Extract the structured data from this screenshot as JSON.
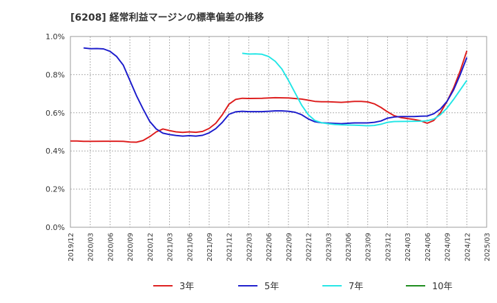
{
  "chart_data": {
    "type": "line",
    "title": "[6208]  経常利益マージンの標準偏差の推移",
    "xlabel": "",
    "ylabel": "",
    "ylim": [
      0,
      1.0
    ],
    "y_ticks": [
      "0.0%",
      "0.2%",
      "0.4%",
      "0.6%",
      "0.8%",
      "1.0%"
    ],
    "x_ticks": [
      "2019/12",
      "2020/03",
      "2020/06",
      "2020/09",
      "2020/12",
      "2021/03",
      "2021/06",
      "2021/09",
      "2021/12",
      "2022/03",
      "2022/06",
      "2022/09",
      "2022/12",
      "2023/03",
      "2023/06",
      "2023/09",
      "2023/12",
      "2024/03",
      "2024/06",
      "2024/09",
      "2024/12",
      "2025/03"
    ],
    "grid": true,
    "legend_position": "bottom",
    "series": [
      {
        "name": "3年",
        "color": "#dd1c1c",
        "points": [
          [
            "2019/12",
            0.452
          ],
          [
            "2020/01",
            0.452
          ],
          [
            "2020/02",
            0.45
          ],
          [
            "2020/03",
            0.45
          ],
          [
            "2020/05",
            0.451
          ],
          [
            "2020/07",
            0.451
          ],
          [
            "2020/08",
            0.45
          ],
          [
            "2020/09",
            0.447
          ],
          [
            "2020/10",
            0.446
          ],
          [
            "2020/11",
            0.455
          ],
          [
            "2020/12",
            0.475
          ],
          [
            "2021/01",
            0.5
          ],
          [
            "2021/02",
            0.515
          ],
          [
            "2021/03",
            0.507
          ],
          [
            "2021/04",
            0.5
          ],
          [
            "2021/05",
            0.497
          ],
          [
            "2021/06",
            0.5
          ],
          [
            "2021/07",
            0.498
          ],
          [
            "2021/08",
            0.502
          ],
          [
            "2021/09",
            0.518
          ],
          [
            "2021/10",
            0.545
          ],
          [
            "2021/11",
            0.59
          ],
          [
            "2021/12",
            0.645
          ],
          [
            "2022/01",
            0.67
          ],
          [
            "2022/02",
            0.676
          ],
          [
            "2022/03",
            0.675
          ],
          [
            "2022/05",
            0.676
          ],
          [
            "2022/07",
            0.679
          ],
          [
            "2022/09",
            0.678
          ],
          [
            "2022/11",
            0.672
          ],
          [
            "2022/12",
            0.666
          ],
          [
            "2023/01",
            0.66
          ],
          [
            "2023/02",
            0.658
          ],
          [
            "2023/03",
            0.658
          ],
          [
            "2023/05",
            0.655
          ],
          [
            "2023/06",
            0.657
          ],
          [
            "2023/07",
            0.66
          ],
          [
            "2023/08",
            0.66
          ],
          [
            "2023/09",
            0.657
          ],
          [
            "2023/10",
            0.647
          ],
          [
            "2023/11",
            0.628
          ],
          [
            "2023/12",
            0.605
          ],
          [
            "2024/01",
            0.585
          ],
          [
            "2024/02",
            0.575
          ],
          [
            "2024/03",
            0.57
          ],
          [
            "2024/04",
            0.565
          ],
          [
            "2024/05",
            0.558
          ],
          [
            "2024/06",
            0.545
          ],
          [
            "2024/07",
            0.56
          ],
          [
            "2024/08",
            0.6
          ],
          [
            "2024/09",
            0.66
          ],
          [
            "2024/10",
            0.73
          ],
          [
            "2024/11",
            0.82
          ],
          [
            "2024/12",
            0.925
          ]
        ]
      },
      {
        "name": "5年",
        "color": "#1c1ccc",
        "points": [
          [
            "2020/02",
            0.94
          ],
          [
            "2020/03",
            0.936
          ],
          [
            "2020/04",
            0.937
          ],
          [
            "2020/05",
            0.935
          ],
          [
            "2020/06",
            0.922
          ],
          [
            "2020/07",
            0.895
          ],
          [
            "2020/08",
            0.85
          ],
          [
            "2020/09",
            0.77
          ],
          [
            "2020/10",
            0.69
          ],
          [
            "2020/11",
            0.62
          ],
          [
            "2020/12",
            0.555
          ],
          [
            "2021/01",
            0.515
          ],
          [
            "2021/02",
            0.493
          ],
          [
            "2021/03",
            0.486
          ],
          [
            "2021/04",
            0.481
          ],
          [
            "2021/05",
            0.478
          ],
          [
            "2021/06",
            0.48
          ],
          [
            "2021/07",
            0.478
          ],
          [
            "2021/08",
            0.482
          ],
          [
            "2021/09",
            0.495
          ],
          [
            "2021/10",
            0.517
          ],
          [
            "2021/11",
            0.55
          ],
          [
            "2021/12",
            0.592
          ],
          [
            "2022/01",
            0.605
          ],
          [
            "2022/02",
            0.608
          ],
          [
            "2022/03",
            0.606
          ],
          [
            "2022/05",
            0.606
          ],
          [
            "2022/06",
            0.608
          ],
          [
            "2022/07",
            0.61
          ],
          [
            "2022/08",
            0.61
          ],
          [
            "2022/09",
            0.608
          ],
          [
            "2022/10",
            0.603
          ],
          [
            "2022/11",
            0.59
          ],
          [
            "2022/12",
            0.568
          ],
          [
            "2023/01",
            0.553
          ],
          [
            "2023/02",
            0.548
          ],
          [
            "2023/03",
            0.546
          ],
          [
            "2023/05",
            0.543
          ],
          [
            "2023/06",
            0.545
          ],
          [
            "2023/07",
            0.547
          ],
          [
            "2023/09",
            0.547
          ],
          [
            "2023/10",
            0.55
          ],
          [
            "2023/11",
            0.557
          ],
          [
            "2023/12",
            0.572
          ],
          [
            "2024/01",
            0.578
          ],
          [
            "2024/02",
            0.58
          ],
          [
            "2024/04",
            0.58
          ],
          [
            "2024/05",
            0.582
          ],
          [
            "2024/06",
            0.583
          ],
          [
            "2024/07",
            0.595
          ],
          [
            "2024/08",
            0.62
          ],
          [
            "2024/09",
            0.66
          ],
          [
            "2024/10",
            0.72
          ],
          [
            "2024/11",
            0.8
          ],
          [
            "2024/12",
            0.89
          ]
        ]
      },
      {
        "name": "7年",
        "color": "#22e6e6",
        "points": [
          [
            "2022/02",
            0.912
          ],
          [
            "2022/03",
            0.908
          ],
          [
            "2022/04",
            0.909
          ],
          [
            "2022/05",
            0.907
          ],
          [
            "2022/06",
            0.895
          ],
          [
            "2022/07",
            0.87
          ],
          [
            "2022/08",
            0.83
          ],
          [
            "2022/09",
            0.77
          ],
          [
            "2022/10",
            0.705
          ],
          [
            "2022/11",
            0.64
          ],
          [
            "2022/12",
            0.59
          ],
          [
            "2023/01",
            0.56
          ],
          [
            "2023/02",
            0.548
          ],
          [
            "2023/03",
            0.543
          ],
          [
            "2023/04",
            0.539
          ],
          [
            "2023/05",
            0.537
          ],
          [
            "2023/07",
            0.535
          ],
          [
            "2023/08",
            0.534
          ],
          [
            "2023/09",
            0.532
          ],
          [
            "2023/10",
            0.534
          ],
          [
            "2023/11",
            0.54
          ],
          [
            "2023/12",
            0.55
          ],
          [
            "2024/01",
            0.554
          ],
          [
            "2024/03",
            0.555
          ],
          [
            "2024/05",
            0.556
          ],
          [
            "2024/06",
            0.558
          ],
          [
            "2024/07",
            0.567
          ],
          [
            "2024/08",
            0.59
          ],
          [
            "2024/09",
            0.625
          ],
          [
            "2024/10",
            0.67
          ],
          [
            "2024/11",
            0.72
          ],
          [
            "2024/12",
            0.77
          ]
        ]
      },
      {
        "name": "10年",
        "color": "#1a8a1a",
        "points": []
      }
    ]
  }
}
